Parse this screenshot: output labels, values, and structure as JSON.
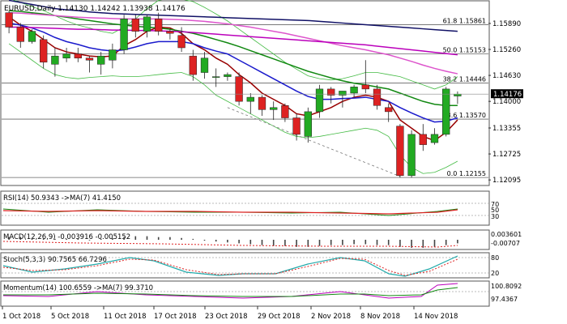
{
  "main": {
    "title": "EURUSD,Daily  1.14130 1.14242 1.13938 1.14176",
    "yticks": [
      "1.15890",
      "1.15260",
      "1.14630",
      "1.14000",
      "1.13355",
      "1.12725",
      "1.12095"
    ],
    "ytick_values": [
      1.1589,
      1.1526,
      1.1463,
      1.14,
      1.13355,
      1.12725,
      1.12095
    ],
    "current_price": "1.14176",
    "current_value": 1.14176,
    "fib_levels": [
      {
        "label": "61.8 1.15861",
        "value": 1.15861
      },
      {
        "label": "50.0 1.15153",
        "value": 1.15153
      },
      {
        "label": "38.2 1.14446",
        "value": 1.14446
      },
      {
        "label": "23.6 1.13570",
        "value": 1.1357
      },
      {
        "label": "0.0 1.12155",
        "value": 1.12155
      }
    ],
    "ylim": [
      1.1198,
      1.1638
    ]
  },
  "x_labels": [
    "1 Oct 2018",
    "5 Oct 2018",
    "11 Oct 2018",
    "17 Oct 2018",
    "23 Oct 2018",
    "29 Oct 2018",
    "2 Nov 2018",
    "8 Nov 2018",
    "14 Nov 2018"
  ],
  "panels": {
    "rsi": {
      "title": "RSI(14) 50.9343  ->MA(7) 41.4150",
      "ticks": [
        "70",
        "50",
        "30"
      ]
    },
    "macd": {
      "title": "MACD(12,26,9) -0.003916  -0.005152",
      "ticks": [
        "0.003601",
        "-0.00707"
      ]
    },
    "stoch": {
      "title": "Stoch(5,3,3) 90.7565  66.7296",
      "ticks": [
        "80",
        "20"
      ]
    },
    "momentum": {
      "title": "Momentum(14) 100.6559  ->MA(7) 99.3710",
      "ticks": [
        "100.8092",
        "97.4367"
      ]
    }
  },
  "colors": {
    "bull": "#22aa22",
    "bear": "#dd2222",
    "ma_brown": "#990000",
    "ma_blue": "#1a1acc",
    "ma_green": "#118811",
    "ma_pink": "#dd55cc",
    "ma_navy": "#111166",
    "ma_magenta": "#bb00bb"
  },
  "chart_data": {
    "type": "candlestick",
    "title": "EURUSD,Daily  1.14130 1.14242 1.13938 1.14176",
    "ylim": [
      1.1198,
      1.1638
    ],
    "candles": [
      [
        1.1615,
        1.162,
        1.1565,
        1.158
      ],
      [
        1.158,
        1.159,
        1.153,
        1.1545
      ],
      [
        1.1545,
        1.1575,
        1.154,
        1.157
      ],
      [
        1.155,
        1.156,
        1.148,
        1.1495
      ],
      [
        1.149,
        1.153,
        1.146,
        1.151
      ],
      [
        1.1505,
        1.153,
        1.1495,
        1.1515
      ],
      [
        1.1515,
        1.153,
        1.1495,
        1.1505
      ],
      [
        1.1505,
        1.151,
        1.147,
        1.15
      ],
      [
        1.149,
        1.152,
        1.1465,
        1.151
      ],
      [
        1.15,
        1.154,
        1.148,
        1.1525
      ],
      [
        1.1525,
        1.161,
        1.1515,
        1.16
      ],
      [
        1.16,
        1.161,
        1.1555,
        1.157
      ],
      [
        1.157,
        1.161,
        1.1555,
        1.1605
      ],
      [
        1.16,
        1.1615,
        1.156,
        1.157
      ],
      [
        1.157,
        1.1575,
        1.155,
        1.1565
      ],
      [
        1.156,
        1.158,
        1.152,
        1.153
      ],
      [
        1.151,
        1.1525,
        1.145,
        1.1465
      ],
      [
        1.147,
        1.152,
        1.1455,
        1.1505
      ],
      [
        1.146,
        1.148,
        1.1435,
        1.146
      ],
      [
        1.146,
        1.147,
        1.145,
        1.1465
      ],
      [
        1.146,
        1.147,
        1.139,
        1.14
      ],
      [
        1.14,
        1.142,
        1.137,
        1.141
      ],
      [
        1.141,
        1.1415,
        1.1365,
        1.138
      ],
      [
        1.138,
        1.14,
        1.1355,
        1.1385
      ],
      [
        1.139,
        1.1395,
        1.135,
        1.136
      ],
      [
        1.136,
        1.137,
        1.1305,
        1.132
      ],
      [
        1.1315,
        1.1385,
        1.13,
        1.1375
      ],
      [
        1.1375,
        1.144,
        1.136,
        1.143
      ],
      [
        1.143,
        1.1435,
        1.1395,
        1.1415
      ],
      [
        1.1415,
        1.1425,
        1.1385,
        1.1425
      ],
      [
        1.142,
        1.144,
        1.141,
        1.1435
      ],
      [
        1.144,
        1.15,
        1.142,
        1.143
      ],
      [
        1.143,
        1.144,
        1.138,
        1.139
      ],
      [
        1.1385,
        1.1395,
        1.135,
        1.1375
      ],
      [
        1.134,
        1.1345,
        1.1215,
        1.122
      ],
      [
        1.122,
        1.133,
        1.1215,
        1.132
      ],
      [
        1.132,
        1.1345,
        1.128,
        1.1295
      ],
      [
        1.13,
        1.1335,
        1.1295,
        1.132
      ],
      [
        1.132,
        1.1435,
        1.1315,
        1.143
      ],
      [
        1.1413,
        1.14242,
        1.13938,
        1.14176
      ]
    ],
    "moving_averages": [
      {
        "color": "#990000",
        "values": [
          1.1605,
          1.1585,
          1.157,
          1.155,
          1.153,
          1.152,
          1.1515,
          1.151,
          1.1508,
          1.151,
          1.1535,
          1.155,
          1.157,
          1.158,
          1.1578,
          1.1565,
          1.154,
          1.1525,
          1.1505,
          1.149,
          1.1465,
          1.1445,
          1.142,
          1.1405,
          1.139,
          1.137,
          1.1365,
          1.1375,
          1.1385,
          1.14,
          1.141,
          1.1415,
          1.141,
          1.14,
          1.1355,
          1.1335,
          1.1315,
          1.1305,
          1.1325,
          1.1355
        ]
      },
      {
        "color": "#1a1acc",
        "values": [
          1.159,
          1.1585,
          1.1578,
          1.1568,
          1.1555,
          1.1545,
          1.1538,
          1.153,
          1.1525,
          1.1522,
          1.1525,
          1.1532,
          1.154,
          1.1545,
          1.1545,
          1.1545,
          1.154,
          1.153,
          1.1522,
          1.1515,
          1.15,
          1.1485,
          1.147,
          1.1455,
          1.144,
          1.1425,
          1.1412,
          1.1405,
          1.1405,
          1.1407,
          1.1408,
          1.141,
          1.1405,
          1.14,
          1.1385,
          1.1372,
          1.136,
          1.135,
          1.1352,
          1.136
        ]
      },
      {
        "color": "#118811",
        "values": [
          1.162,
          1.1618,
          1.1615,
          1.1612,
          1.1608,
          1.1604,
          1.16,
          1.1596,
          1.1592,
          1.1588,
          1.1585,
          1.1582,
          1.158,
          1.1578,
          1.1575,
          1.157,
          1.1565,
          1.1558,
          1.155,
          1.1542,
          1.1533,
          1.1523,
          1.1513,
          1.1503,
          1.1493,
          1.1483,
          1.1473,
          1.1465,
          1.1457,
          1.145,
          1.1444,
          1.144,
          1.1435,
          1.143,
          1.142,
          1.141,
          1.14,
          1.1393,
          1.139,
          1.139
        ]
      },
      {
        "color": "#dd55cc",
        "values": [
          1.1615,
          1.1614,
          1.1612,
          1.161,
          1.1608,
          1.1606,
          1.1604,
          1.1603,
          1.1602,
          1.1601,
          1.16,
          1.16,
          1.16,
          1.16,
          1.1599,
          1.1598,
          1.1596,
          1.1594,
          1.1591,
          1.1588,
          1.1584,
          1.158,
          1.1575,
          1.157,
          1.1565,
          1.1559,
          1.1553,
          1.1547,
          1.1541,
          1.1535,
          1.153,
          1.1525,
          1.1519,
          1.1513,
          1.1505,
          1.1497,
          1.1488,
          1.148,
          1.1473,
          1.1467
        ]
      },
      {
        "color": "#111166",
        "values": [
          1.1645,
          1.164,
          1.1635,
          1.163,
          1.1625,
          1.1622,
          1.162,
          1.1617,
          1.1615,
          1.1613,
          1.1612,
          1.1611,
          1.161,
          1.1609,
          1.1608,
          1.1607,
          1.1606,
          1.1605,
          1.1604,
          1.1603,
          1.1602,
          1.1601,
          1.16,
          1.1599,
          1.1598,
          1.1597,
          1.1596,
          1.1594,
          1.1592,
          1.159,
          1.1588,
          1.1586,
          1.1584,
          1.1582,
          1.158,
          1.1578,
          1.1576,
          1.1574,
          1.1572,
          1.157
        ]
      },
      {
        "color": "#bb00bb",
        "values": [
          1.158,
          1.158,
          1.1579,
          1.1578,
          1.1577,
          1.1576,
          1.1575,
          1.1575,
          1.1574,
          1.1573,
          1.1573,
          1.1572,
          1.1572,
          1.1571,
          1.157,
          1.1569,
          1.1567,
          1.1565,
          1.1563,
          1.1561,
          1.1559,
          1.1557,
          1.1555,
          1.1553,
          1.1551,
          1.1549,
          1.1547,
          1.1545,
          1.1543,
          1.1541,
          1.1539,
          1.1537,
          1.1534,
          1.1531,
          1.1528,
          1.1525,
          1.1522,
          1.1519,
          1.1516,
          1.1513
        ]
      }
    ],
    "bollinger_upper": [
      1.165,
      1.164,
      1.163,
      1.162,
      1.1608,
      1.1595,
      1.1585,
      1.1578,
      1.157,
      1.1565,
      1.158,
      1.16,
      1.1625,
      1.1645,
      1.165,
      1.1648,
      1.1642,
      1.1628,
      1.1612,
      1.1595,
      1.1575,
      1.1555,
      1.1535,
      1.1515,
      1.1495,
      1.1478,
      1.1462,
      1.1455,
      1.1452,
      1.1455,
      1.1462,
      1.147,
      1.147,
      1.1465,
      1.146,
      1.145,
      1.144,
      1.143,
      1.144,
      1.146
    ],
    "bollinger_lower": [
      1.154,
      1.152,
      1.15,
      1.148,
      1.1465,
      1.1458,
      1.1455,
      1.1458,
      1.146,
      1.1462,
      1.146,
      1.146,
      1.1462,
      1.1465,
      1.1468,
      1.147,
      1.146,
      1.144,
      1.1415,
      1.14,
      1.1385,
      1.137,
      1.1355,
      1.134,
      1.1325,
      1.1315,
      1.1312,
      1.1315,
      1.132,
      1.1325,
      1.133,
      1.1335,
      1.133,
      1.1315,
      1.127,
      1.124,
      1.1225,
      1.1228,
      1.124,
      1.1255
    ]
  }
}
